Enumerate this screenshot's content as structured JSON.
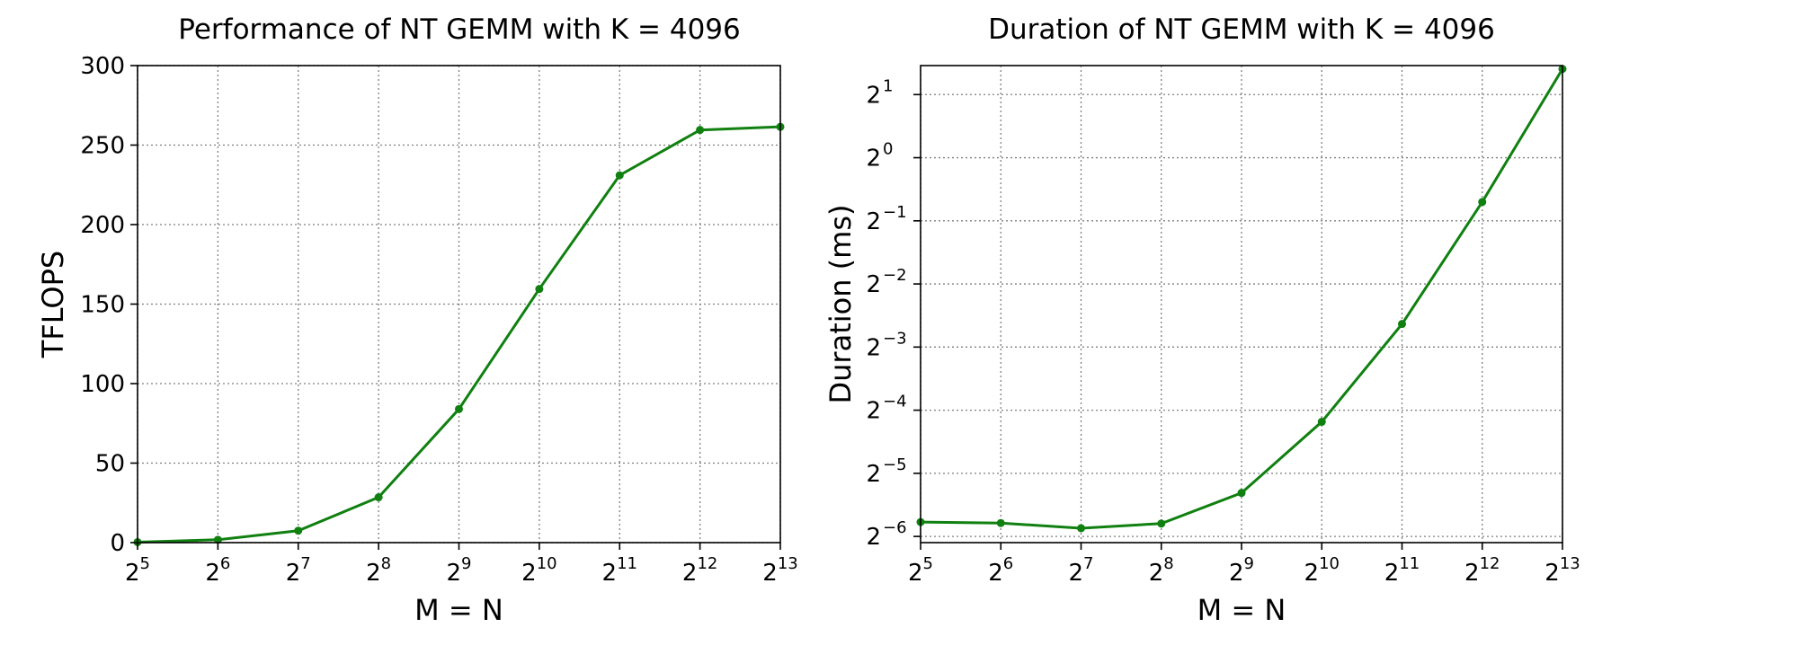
{
  "chart_data": [
    {
      "type": "line",
      "title": "Performance of NT GEMM with K = 4096",
      "xlabel": "M = N",
      "ylabel": "TFLOPS",
      "x_scale": "log2",
      "x": [
        32,
        64,
        128,
        256,
        512,
        1024,
        2048,
        4096,
        8192
      ],
      "x_ticks": [
        {
          "base": "2",
          "exp": "5"
        },
        {
          "base": "2",
          "exp": "6"
        },
        {
          "base": "2",
          "exp": "7"
        },
        {
          "base": "2",
          "exp": "8"
        },
        {
          "base": "2",
          "exp": "9"
        },
        {
          "base": "2",
          "exp": "10"
        },
        {
          "base": "2",
          "exp": "11"
        },
        {
          "base": "2",
          "exp": "12"
        },
        {
          "base": "2",
          "exp": "13"
        }
      ],
      "y_scale": "linear",
      "ylim": [
        0,
        300
      ],
      "y_ticks": [
        {
          "value": 0,
          "label": "0"
        },
        {
          "value": 50,
          "label": "50"
        },
        {
          "value": 100,
          "label": "100"
        },
        {
          "value": 150,
          "label": "150"
        },
        {
          "value": 200,
          "label": "200"
        },
        {
          "value": 250,
          "label": "250"
        },
        {
          "value": 300,
          "label": "300"
        }
      ],
      "grid": true,
      "series": [
        {
          "color": "#108010",
          "marker": "dot",
          "values": [
            0.3,
            1.8,
            7.5,
            28.5,
            84,
            159.5,
            231,
            259.5,
            261.5
          ]
        }
      ]
    },
    {
      "type": "line",
      "title": "Duration of NT GEMM with K = 4096",
      "xlabel": "M = N",
      "ylabel": "Duration (ms)",
      "x_scale": "log2",
      "x": [
        32,
        64,
        128,
        256,
        512,
        1024,
        2048,
        4096,
        8192
      ],
      "x_ticks": [
        {
          "base": "2",
          "exp": "5"
        },
        {
          "base": "2",
          "exp": "6"
        },
        {
          "base": "2",
          "exp": "7"
        },
        {
          "base": "2",
          "exp": "8"
        },
        {
          "base": "2",
          "exp": "9"
        },
        {
          "base": "2",
          "exp": "10"
        },
        {
          "base": "2",
          "exp": "11"
        },
        {
          "base": "2",
          "exp": "12"
        },
        {
          "base": "2",
          "exp": "13"
        }
      ],
      "y_scale": "log2",
      "ylim": [
        0.0146,
        2.75
      ],
      "y_ticks": [
        {
          "value": 0.015625,
          "base": "2",
          "exp": "−6"
        },
        {
          "value": 0.03125,
          "base": "2",
          "exp": "−5"
        },
        {
          "value": 0.0625,
          "base": "2",
          "exp": "−4"
        },
        {
          "value": 0.125,
          "base": "2",
          "exp": "−3"
        },
        {
          "value": 0.25,
          "base": "2",
          "exp": "−2"
        },
        {
          "value": 0.5,
          "base": "2",
          "exp": "−1"
        },
        {
          "value": 1,
          "base": "2",
          "exp": "0"
        },
        {
          "value": 2,
          "base": "2",
          "exp": "1"
        }
      ],
      "grid": true,
      "series": [
        {
          "color": "#108010",
          "marker": "dot",
          "values": [
            0.0183,
            0.0181,
            0.0171,
            0.018,
            0.0252,
            0.055,
            0.161,
            0.615,
            2.65
          ]
        }
      ]
    }
  ]
}
